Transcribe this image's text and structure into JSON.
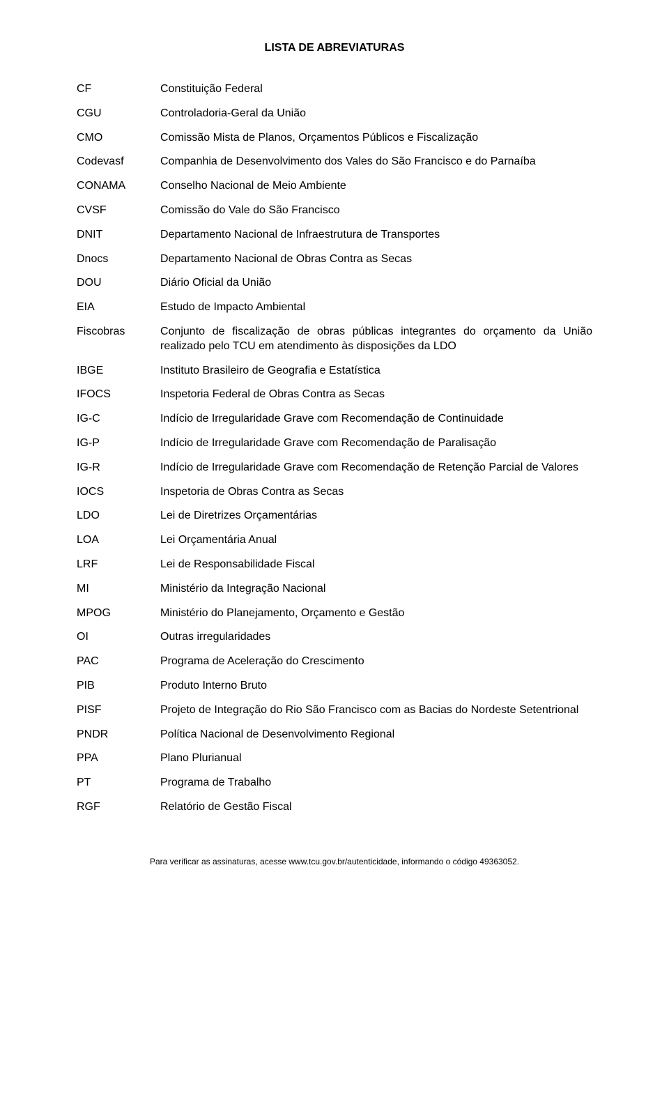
{
  "title": "LISTA DE ABREVIATURAS",
  "rows": [
    {
      "abbr": "CF",
      "desc": "Constituição Federal"
    },
    {
      "abbr": "CGU",
      "desc": "Controladoria-Geral da União"
    },
    {
      "abbr": "CMO",
      "desc": "Comissão Mista de Planos, Orçamentos Públicos e Fiscalização"
    },
    {
      "abbr": "Codevasf",
      "desc": "Companhia de Desenvolvimento dos Vales do São Francisco e do Parnaíba"
    },
    {
      "abbr": "CONAMA",
      "desc": "Conselho Nacional de Meio Ambiente"
    },
    {
      "abbr": "CVSF",
      "desc": "Comissão do Vale do São Francisco"
    },
    {
      "abbr": "DNIT",
      "desc": "Departamento Nacional de Infraestrutura de Transportes"
    },
    {
      "abbr": "Dnocs",
      "desc": "Departamento Nacional de Obras Contra as Secas"
    },
    {
      "abbr": "DOU",
      "desc": "Diário Oficial da União"
    },
    {
      "abbr": "EIA",
      "desc": "Estudo de Impacto Ambiental"
    },
    {
      "abbr": "Fiscobras",
      "desc": "Conjunto de fiscalização de obras públicas integrantes do orçamento da União realizado pelo TCU em atendimento às disposições da LDO"
    },
    {
      "abbr": "IBGE",
      "desc": "Instituto Brasileiro de Geografia e Estatística"
    },
    {
      "abbr": "IFOCS",
      "desc": "Inspetoria Federal de Obras Contra as Secas"
    },
    {
      "abbr": "IG-C",
      "desc": "Indício de Irregularidade Grave com Recomendação de Continuidade"
    },
    {
      "abbr": "IG-P",
      "desc": "Indício de Irregularidade Grave com Recomendação de Paralisação"
    },
    {
      "abbr": "IG-R",
      "desc": "Indício de Irregularidade Grave com Recomendação de Retenção Parcial de Valores"
    },
    {
      "abbr": "IOCS",
      "desc": "Inspetoria de Obras Contra as Secas"
    },
    {
      "abbr": "LDO",
      "desc": "Lei de Diretrizes Orçamentárias"
    },
    {
      "abbr": "LOA",
      "desc": "Lei Orçamentária Anual"
    },
    {
      "abbr": "LRF",
      "desc": "Lei de Responsabilidade Fiscal"
    },
    {
      "abbr": "MI",
      "desc": "Ministério da Integração Nacional"
    },
    {
      "abbr": "MPOG",
      "desc": "Ministério do Planejamento, Orçamento e Gestão"
    },
    {
      "abbr": "OI",
      "desc": "Outras irregularidades"
    },
    {
      "abbr": "PAC",
      "desc": "Programa de Aceleração do Crescimento"
    },
    {
      "abbr": "PIB",
      "desc": "Produto Interno Bruto"
    },
    {
      "abbr": "PISF",
      "desc": "Projeto de Integração do Rio São Francisco com as Bacias do Nordeste Setentrional"
    },
    {
      "abbr": "PNDR",
      "desc": "Política Nacional de Desenvolvimento Regional"
    },
    {
      "abbr": "PPA",
      "desc": "Plano Plurianual"
    },
    {
      "abbr": "PT",
      "desc": "Programa de Trabalho"
    },
    {
      "abbr": "RGF",
      "desc": "Relatório de Gestão Fiscal"
    }
  ],
  "footer": "Para verificar as assinaturas, acesse www.tcu.gov.br/autenticidade, informando o código 49363052."
}
